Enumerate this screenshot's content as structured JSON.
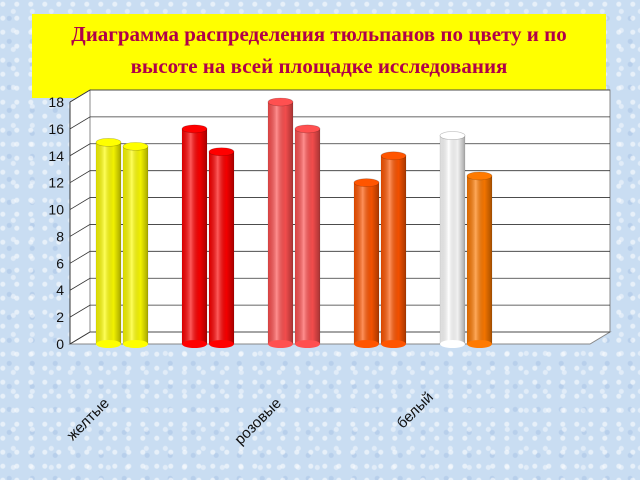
{
  "title": "Диаграмма распределения тюльпанов по цвету и по высоте на всей площадке исследования",
  "colors": {
    "background": "#c9ddf2",
    "title_bg": "#ffff00",
    "title_text": "#b0004a"
  },
  "chart_data": {
    "type": "bar",
    "title": "Диаграмма распределения тюльпанов по цвету и по высоте на всей площадке исследования",
    "ylim": [
      0,
      18
    ],
    "yticks": [
      0,
      2,
      4,
      6,
      8,
      10,
      12,
      14,
      16,
      18
    ],
    "x_labels": [
      "желтые",
      "розовые",
      "белый"
    ],
    "bars": [
      {
        "value": 15.0,
        "color": "#ffff00"
      },
      {
        "value": 14.7,
        "color": "#ffff00"
      },
      {
        "value": 16.0,
        "color": "#ff0000"
      },
      {
        "value": 14.3,
        "color": "#ff0000"
      },
      {
        "value": 18.0,
        "color": "#ff5050"
      },
      {
        "value": 16.0,
        "color": "#ff5050"
      },
      {
        "value": 12.0,
        "color": "#ff5500"
      },
      {
        "value": 14.0,
        "color": "#ff5500"
      },
      {
        "value": 15.5,
        "color": "#ffffff"
      },
      {
        "value": 12.5,
        "color": "#ff7a00"
      }
    ],
    "grid": true,
    "legend": "none"
  }
}
